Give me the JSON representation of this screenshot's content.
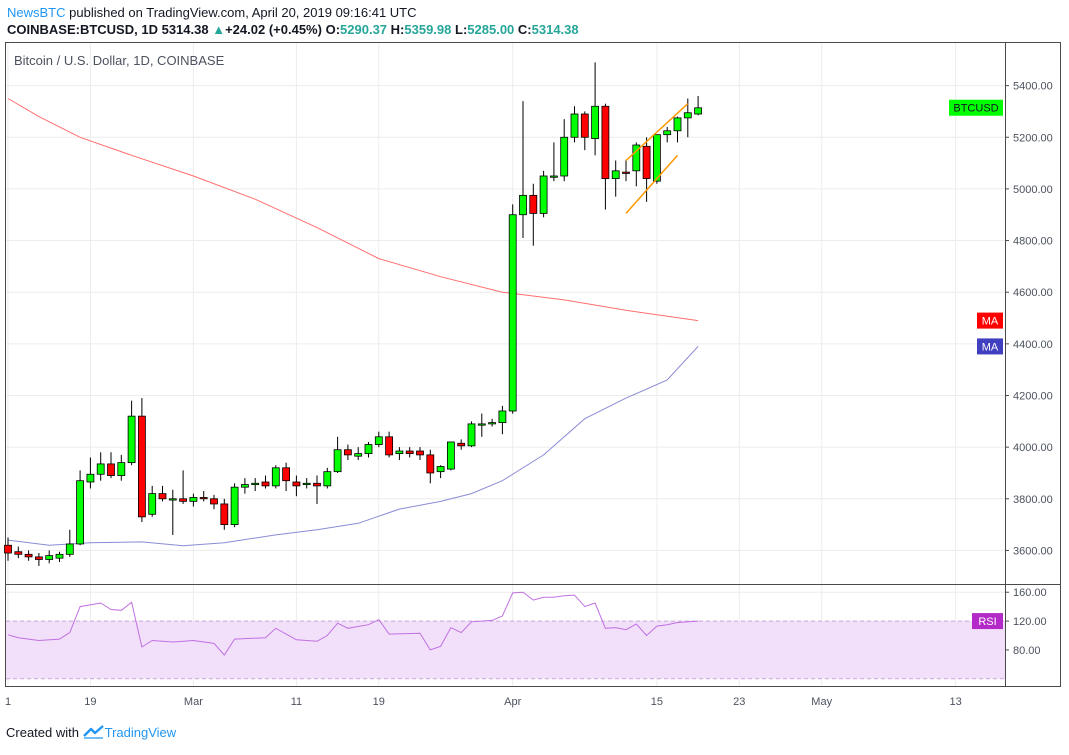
{
  "header": {
    "publisher": "NewsBTC",
    "published_text": " published on TradingView.com, April 20, 2019 09:16:41 UTC"
  },
  "quote": {
    "symbol": "COINBASE:BTCUSD, 1D",
    "price": "5314.38",
    "change": "+24.02 (+0.45%)",
    "o_label": "O:",
    "o": "5290.37",
    "h_label": "H:",
    "h": "5359.98",
    "l_label": "L:",
    "l": "5285.00",
    "c_label": "C:",
    "c": "5314.38"
  },
  "footer": {
    "created_with": "Created with",
    "brand": "TradingView"
  },
  "colors": {
    "up": "#00ff00",
    "down": "#ff0000",
    "ma_red": "#ff6e6e",
    "ma_blue": "#8b8bd6",
    "rsi": "#c070e0",
    "rsi_band": "#f2e0fb",
    "channel": "#ff9800",
    "grid": "#ececec"
  },
  "chart_data": [
    {
      "type": "candlestick",
      "title": "Bitcoin / U.S. Dollar, 1D, COINBASE",
      "y_ticks": [
        "5400.00",
        "5200.00",
        "5000.00",
        "4800.00",
        "4600.00",
        "4400.00",
        "4200.00",
        "4000.00",
        "3800.00",
        "3600.00"
      ],
      "ylim": [
        3470,
        5565
      ],
      "x_ticks": [
        {
          "label": "1",
          "day": 0
        },
        {
          "label": "19",
          "day": 8
        },
        {
          "label": "Mar",
          "day": 18
        },
        {
          "label": "11",
          "day": 28
        },
        {
          "label": "19",
          "day": 36
        },
        {
          "label": "Apr",
          "day": 49
        },
        {
          "label": "15",
          "day": 63
        },
        {
          "label": "23",
          "day": 71
        },
        {
          "label": "May",
          "day": 79
        },
        {
          "label": "13",
          "day": 92
        }
      ],
      "candles": [
        {
          "o": 3620,
          "h": 3650,
          "l": 3560,
          "c": 3590
        },
        {
          "o": 3595,
          "h": 3615,
          "l": 3570,
          "c": 3585
        },
        {
          "o": 3585,
          "h": 3600,
          "l": 3560,
          "c": 3575
        },
        {
          "o": 3575,
          "h": 3590,
          "l": 3540,
          "c": 3565
        },
        {
          "o": 3565,
          "h": 3600,
          "l": 3550,
          "c": 3580
        },
        {
          "o": 3570,
          "h": 3595,
          "l": 3555,
          "c": 3585
        },
        {
          "o": 3585,
          "h": 3680,
          "l": 3575,
          "c": 3625
        },
        {
          "o": 3625,
          "h": 3910,
          "l": 3620,
          "c": 3870
        },
        {
          "o": 3865,
          "h": 3960,
          "l": 3840,
          "c": 3895
        },
        {
          "o": 3895,
          "h": 3980,
          "l": 3870,
          "c": 3935
        },
        {
          "o": 3935,
          "h": 3980,
          "l": 3880,
          "c": 3890
        },
        {
          "o": 3890,
          "h": 3970,
          "l": 3870,
          "c": 3940
        },
        {
          "o": 3940,
          "h": 4180,
          "l": 3930,
          "c": 4120
        },
        {
          "o": 4120,
          "h": 4190,
          "l": 3710,
          "c": 3730
        },
        {
          "o": 3740,
          "h": 3850,
          "l": 3730,
          "c": 3820
        },
        {
          "o": 3820,
          "h": 3850,
          "l": 3790,
          "c": 3800
        },
        {
          "o": 3795,
          "h": 3835,
          "l": 3660,
          "c": 3800
        },
        {
          "o": 3800,
          "h": 3910,
          "l": 3780,
          "c": 3790
        },
        {
          "o": 3790,
          "h": 3820,
          "l": 3770,
          "c": 3805
        },
        {
          "o": 3805,
          "h": 3830,
          "l": 3790,
          "c": 3800
        },
        {
          "o": 3800,
          "h": 3815,
          "l": 3760,
          "c": 3780
        },
        {
          "o": 3780,
          "h": 3800,
          "l": 3680,
          "c": 3700
        },
        {
          "o": 3700,
          "h": 3860,
          "l": 3690,
          "c": 3845
        },
        {
          "o": 3845,
          "h": 3880,
          "l": 3820,
          "c": 3855
        },
        {
          "o": 3855,
          "h": 3880,
          "l": 3830,
          "c": 3860
        },
        {
          "o": 3865,
          "h": 3890,
          "l": 3840,
          "c": 3850
        },
        {
          "o": 3850,
          "h": 3930,
          "l": 3840,
          "c": 3920
        },
        {
          "o": 3920,
          "h": 3940,
          "l": 3830,
          "c": 3870
        },
        {
          "o": 3865,
          "h": 3890,
          "l": 3810,
          "c": 3850
        },
        {
          "o": 3855,
          "h": 3880,
          "l": 3840,
          "c": 3860
        },
        {
          "o": 3860,
          "h": 3890,
          "l": 3780,
          "c": 3850
        },
        {
          "o": 3850,
          "h": 3920,
          "l": 3840,
          "c": 3905
        },
        {
          "o": 3905,
          "h": 4040,
          "l": 3900,
          "c": 3990
        },
        {
          "o": 3990,
          "h": 4010,
          "l": 3950,
          "c": 3970
        },
        {
          "o": 3965,
          "h": 4000,
          "l": 3950,
          "c": 3975
        },
        {
          "o": 3975,
          "h": 4020,
          "l": 3960,
          "c": 4010
        },
        {
          "o": 4010,
          "h": 4060,
          "l": 4000,
          "c": 4040
        },
        {
          "o": 4040,
          "h": 4060,
          "l": 3960,
          "c": 3970
        },
        {
          "o": 3975,
          "h": 4000,
          "l": 3950,
          "c": 3985
        },
        {
          "o": 3985,
          "h": 4000,
          "l": 3960,
          "c": 3975
        },
        {
          "o": 3985,
          "h": 4000,
          "l": 3950,
          "c": 3970
        },
        {
          "o": 3970,
          "h": 3990,
          "l": 3860,
          "c": 3900
        },
        {
          "o": 3905,
          "h": 3930,
          "l": 3880,
          "c": 3925
        },
        {
          "o": 3915,
          "h": 4020,
          "l": 3910,
          "c": 4020
        },
        {
          "o": 4015,
          "h": 4030,
          "l": 3990,
          "c": 4005
        },
        {
          "o": 4005,
          "h": 4100,
          "l": 4000,
          "c": 4090
        },
        {
          "o": 4085,
          "h": 4130,
          "l": 4040,
          "c": 4090
        },
        {
          "o": 4090,
          "h": 4110,
          "l": 4080,
          "c": 4095
        },
        {
          "o": 4095,
          "h": 4160,
          "l": 4050,
          "c": 4140
        },
        {
          "o": 4140,
          "h": 4940,
          "l": 4130,
          "c": 4900
        },
        {
          "o": 4900,
          "h": 5340,
          "l": 4810,
          "c": 4975
        },
        {
          "o": 4975,
          "h": 5020,
          "l": 4780,
          "c": 4905
        },
        {
          "o": 4905,
          "h": 5070,
          "l": 4890,
          "c": 5050
        },
        {
          "o": 5045,
          "h": 5180,
          "l": 5030,
          "c": 5050
        },
        {
          "o": 5050,
          "h": 5270,
          "l": 5030,
          "c": 5200
        },
        {
          "o": 5200,
          "h": 5320,
          "l": 5180,
          "c": 5290
        },
        {
          "o": 5290,
          "h": 5300,
          "l": 5150,
          "c": 5200
        },
        {
          "o": 5195,
          "h": 5490,
          "l": 5130,
          "c": 5320
        },
        {
          "o": 5320,
          "h": 5330,
          "l": 4920,
          "c": 5040
        },
        {
          "o": 5040,
          "h": 5110,
          "l": 4970,
          "c": 5070
        },
        {
          "o": 5065,
          "h": 5110,
          "l": 5030,
          "c": 5060
        },
        {
          "o": 5070,
          "h": 5180,
          "l": 5010,
          "c": 5170
        },
        {
          "o": 5165,
          "h": 5200,
          "l": 4950,
          "c": 5040
        },
        {
          "o": 5030,
          "h": 5210,
          "l": 5020,
          "c": 5210
        },
        {
          "o": 5210,
          "h": 5240,
          "l": 5180,
          "c": 5225
        },
        {
          "o": 5225,
          "h": 5280,
          "l": 5180,
          "c": 5275
        },
        {
          "o": 5275,
          "h": 5350,
          "l": 5200,
          "c": 5295
        },
        {
          "o": 5290,
          "h": 5360,
          "l": 5285,
          "c": 5314
        }
      ],
      "ma_red": [
        {
          "day": 0,
          "v": 5350
        },
        {
          "day": 3,
          "v": 5280
        },
        {
          "day": 7,
          "v": 5200
        },
        {
          "day": 12,
          "v": 5130
        },
        {
          "day": 18,
          "v": 5050
        },
        {
          "day": 24,
          "v": 4960
        },
        {
          "day": 30,
          "v": 4850
        },
        {
          "day": 36,
          "v": 4730
        },
        {
          "day": 42,
          "v": 4660
        },
        {
          "day": 48,
          "v": 4600
        },
        {
          "day": 54,
          "v": 4570
        },
        {
          "day": 60,
          "v": 4530
        },
        {
          "day": 67,
          "v": 4490
        }
      ],
      "ma_blue": [
        {
          "day": 0,
          "v": 3640
        },
        {
          "day": 4,
          "v": 3620
        },
        {
          "day": 8,
          "v": 3630
        },
        {
          "day": 13,
          "v": 3633
        },
        {
          "day": 17,
          "v": 3618
        },
        {
          "day": 21,
          "v": 3630
        },
        {
          "day": 26,
          "v": 3660
        },
        {
          "day": 30,
          "v": 3680
        },
        {
          "day": 34,
          "v": 3705
        },
        {
          "day": 38,
          "v": 3760
        },
        {
          "day": 42,
          "v": 3790
        },
        {
          "day": 45,
          "v": 3820
        },
        {
          "day": 48,
          "v": 3870
        },
        {
          "day": 52,
          "v": 3970
        },
        {
          "day": 56,
          "v": 4110
        },
        {
          "day": 60,
          "v": 4190
        },
        {
          "day": 64,
          "v": 4260
        },
        {
          "day": 67,
          "v": 4390
        }
      ],
      "channel": [
        {
          "x1": 60,
          "y1": 5110,
          "x2": 66,
          "y2": 5330
        },
        {
          "x1": 60,
          "y1": 4905,
          "x2": 65,
          "y2": 5130
        }
      ],
      "tags": [
        {
          "label": "BTCUSD",
          "value": 5314.38,
          "bg": "#00ff00",
          "fg": "#131722"
        },
        {
          "label": "MA",
          "value": 4490,
          "bg": "#ff0000",
          "fg": "#ffffff"
        },
        {
          "label": "MA",
          "value": 4390,
          "bg": "#3f3fbf",
          "fg": "#ffffff"
        }
      ]
    },
    {
      "type": "line",
      "title": "",
      "y_ticks": [
        "160.00",
        "120.00",
        "80.00"
      ],
      "ylim": [
        30,
        170
      ],
      "band": [
        40,
        120
      ],
      "tag": {
        "label": "RSI",
        "value": 120,
        "bg": "#b32ac8",
        "fg": "#ffffff"
      },
      "series": [
        {
          "day": 0,
          "v": 101
        },
        {
          "day": 1,
          "v": 97
        },
        {
          "day": 3,
          "v": 93
        },
        {
          "day": 5,
          "v": 95
        },
        {
          "day": 6,
          "v": 104
        },
        {
          "day": 7,
          "v": 140
        },
        {
          "day": 9,
          "v": 145
        },
        {
          "day": 10,
          "v": 136
        },
        {
          "day": 11,
          "v": 135
        },
        {
          "day": 12,
          "v": 146
        },
        {
          "day": 13,
          "v": 84
        },
        {
          "day": 14,
          "v": 93
        },
        {
          "day": 16,
          "v": 91
        },
        {
          "day": 18,
          "v": 93
        },
        {
          "day": 20,
          "v": 89
        },
        {
          "day": 21,
          "v": 73
        },
        {
          "day": 22,
          "v": 95
        },
        {
          "day": 25,
          "v": 97
        },
        {
          "day": 26,
          "v": 110
        },
        {
          "day": 28,
          "v": 94
        },
        {
          "day": 30,
          "v": 92
        },
        {
          "day": 31,
          "v": 100
        },
        {
          "day": 32,
          "v": 117
        },
        {
          "day": 33,
          "v": 110
        },
        {
          "day": 35,
          "v": 115
        },
        {
          "day": 36,
          "v": 122
        },
        {
          "day": 37,
          "v": 102
        },
        {
          "day": 40,
          "v": 103
        },
        {
          "day": 41,
          "v": 80
        },
        {
          "day": 42,
          "v": 85
        },
        {
          "day": 43,
          "v": 111
        },
        {
          "day": 44,
          "v": 104
        },
        {
          "day": 45,
          "v": 119
        },
        {
          "day": 47,
          "v": 121
        },
        {
          "day": 48,
          "v": 127
        },
        {
          "day": 49,
          "v": 159
        },
        {
          "day": 50,
          "v": 160
        },
        {
          "day": 51,
          "v": 149
        },
        {
          "day": 52,
          "v": 153
        },
        {
          "day": 53,
          "v": 153
        },
        {
          "day": 54,
          "v": 155
        },
        {
          "day": 55,
          "v": 156
        },
        {
          "day": 56,
          "v": 140
        },
        {
          "day": 57,
          "v": 145
        },
        {
          "day": 58,
          "v": 110
        },
        {
          "day": 59,
          "v": 111
        },
        {
          "day": 60,
          "v": 108
        },
        {
          "day": 61,
          "v": 116
        },
        {
          "day": 62,
          "v": 100
        },
        {
          "day": 63,
          "v": 113
        },
        {
          "day": 64,
          "v": 115
        },
        {
          "day": 65,
          "v": 118
        },
        {
          "day": 67,
          "v": 120
        }
      ]
    }
  ]
}
